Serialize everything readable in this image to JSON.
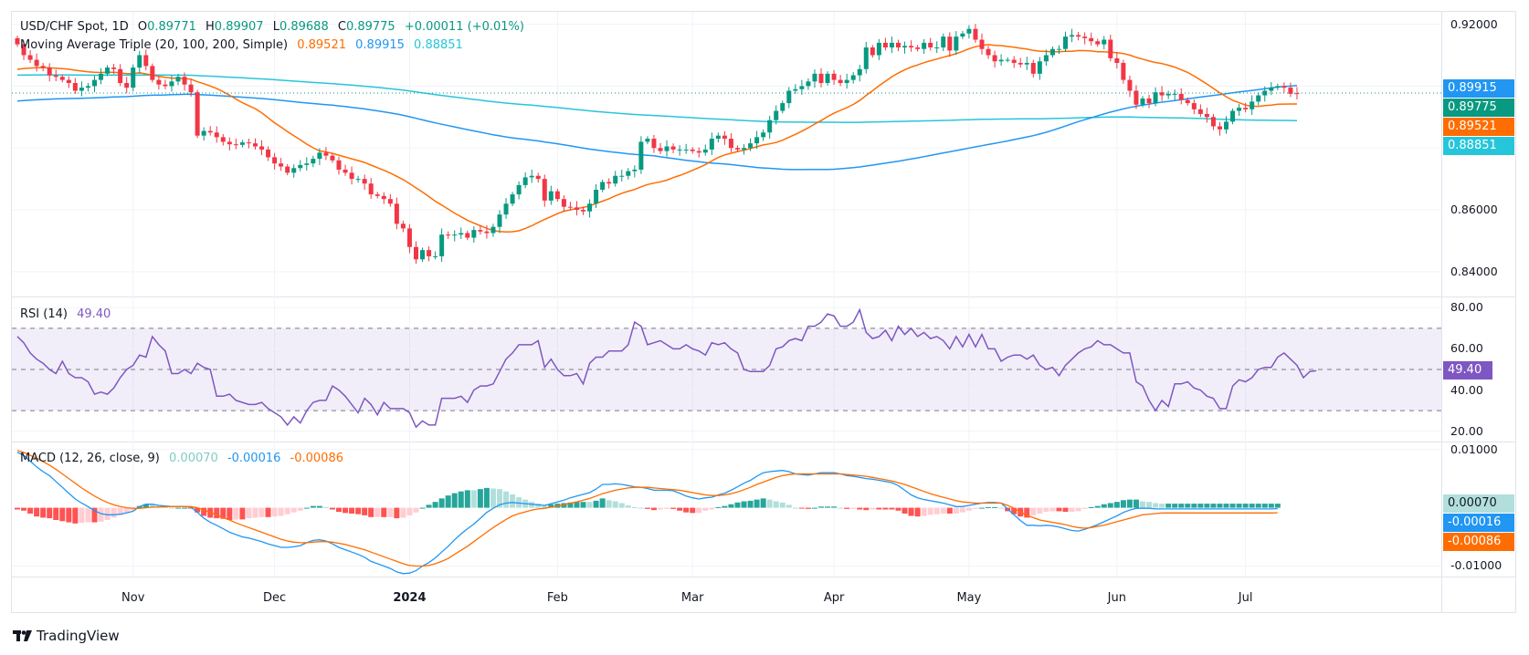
{
  "brand": {
    "name": "TradingView",
    "icon": "tradingview-logo-icon"
  },
  "header": {
    "symbol": "USD/CHF Spot, 1D",
    "ohlc": {
      "O": "0.89771",
      "H": "0.89907",
      "L": "0.89688",
      "C": "0.89775"
    },
    "change": "+0.00011 (+0.01%)",
    "ma_label": "Moving Average Triple (20, 100, 200, Simple)",
    "ma_values": [
      "0.89521",
      "0.89915",
      "0.88851"
    ]
  },
  "rsi": {
    "label": "RSI (14)",
    "value": "49.40"
  },
  "macd": {
    "label": "MACD (12, 26, close, 9)",
    "values": [
      "0.00070",
      "-0.00016",
      "-0.00086"
    ]
  },
  "colors": {
    "up": "#089981",
    "down": "#f23645",
    "ma20": "#ff6d00",
    "ma100": "#2196f3",
    "ma200": "#26c6da",
    "rsi": "#7e57c2",
    "hist_up_strong": "#26a69a",
    "hist_up_weak": "#b2dfdb",
    "hist_down_strong": "#ff5252",
    "hist_down_weak": "#ffcdd2"
  },
  "price_badges": [
    {
      "label": "0.89915",
      "color": "#2196f3"
    },
    {
      "label": "0.89775",
      "color": "#089981"
    },
    {
      "label": "0.89521",
      "color": "#ff6d00"
    },
    {
      "label": "0.88851",
      "color": "#26c6da"
    }
  ],
  "rsi_badge": {
    "label": "49.40",
    "color": "#7e57c2"
  },
  "macd_badges": [
    {
      "label": "0.00070",
      "color": "#b2dfdb",
      "text": "#131722"
    },
    {
      "label": "-0.00016",
      "color": "#2196f3",
      "text": "#ffffff"
    },
    {
      "label": "-0.00086",
      "color": "#ff6d00",
      "text": "#ffffff"
    }
  ],
  "chart_data": [
    {
      "type": "candlestick",
      "title": "USD/CHF Spot, 1D",
      "ylim": [
        0.832,
        0.924
      ],
      "yticks": [
        "0.92000",
        "0.90000",
        "0.88000",
        "0.86000",
        "0.84000"
      ],
      "ytick_values": [
        0.92,
        0.9,
        0.88,
        0.86,
        0.84
      ],
      "xticks": [
        "Nov",
        "Dec",
        "2024",
        "Feb",
        "Mar",
        "Apr",
        "May",
        "Jun",
        "Jul"
      ],
      "xtick_index": [
        18,
        40,
        61,
        84,
        105,
        127,
        148,
        171,
        191
      ],
      "last_close": 0.89775,
      "closes": [
        0.9135,
        0.91,
        0.9085,
        0.9065,
        0.906,
        0.9035,
        0.903,
        0.902,
        0.901,
        0.8985,
        0.8995,
        0.9,
        0.902,
        0.904,
        0.906,
        0.9055,
        0.901,
        0.8995,
        0.906,
        0.91,
        0.9065,
        0.902,
        0.9005,
        0.9,
        0.9015,
        0.903,
        0.9005,
        0.898,
        0.884,
        0.8855,
        0.885,
        0.8835,
        0.882,
        0.8812,
        0.881,
        0.8818,
        0.8815,
        0.8805,
        0.8795,
        0.877,
        0.875,
        0.874,
        0.872,
        0.8735,
        0.8745,
        0.875,
        0.8765,
        0.8785,
        0.8775,
        0.876,
        0.873,
        0.872,
        0.87,
        0.87,
        0.8685,
        0.865,
        0.8645,
        0.8635,
        0.862,
        0.8555,
        0.854,
        0.848,
        0.844,
        0.847,
        0.845,
        0.845,
        0.852,
        0.8518,
        0.852,
        0.8525,
        0.851,
        0.8535,
        0.853,
        0.8525,
        0.8545,
        0.8585,
        0.862,
        0.865,
        0.868,
        0.8705,
        0.871,
        0.87,
        0.863,
        0.866,
        0.8635,
        0.861,
        0.8608,
        0.86,
        0.8595,
        0.862,
        0.8665,
        0.869,
        0.8685,
        0.871,
        0.871,
        0.8725,
        0.873,
        0.882,
        0.883,
        0.88,
        0.879,
        0.8805,
        0.8795,
        0.8795,
        0.8795,
        0.879,
        0.8785,
        0.8795,
        0.883,
        0.884,
        0.883,
        0.88,
        0.8795,
        0.88,
        0.8815,
        0.8835,
        0.885,
        0.889,
        0.892,
        0.8945,
        0.8985,
        0.899,
        0.9,
        0.9015,
        0.904,
        0.901,
        0.904,
        0.902,
        0.901,
        0.902,
        0.9035,
        0.9055,
        0.9125,
        0.91,
        0.914,
        0.9125,
        0.914,
        0.9125,
        0.913,
        0.9125,
        0.912,
        0.914,
        0.9125,
        0.9125,
        0.916,
        0.9115,
        0.916,
        0.917,
        0.9185,
        0.915,
        0.912,
        0.91,
        0.908,
        0.9085,
        0.9085,
        0.9075,
        0.907,
        0.9075,
        0.904,
        0.908,
        0.91,
        0.912,
        0.912,
        0.916,
        0.9165,
        0.916,
        0.9155,
        0.9145,
        0.9135,
        0.915,
        0.909,
        0.9075,
        0.902,
        0.8985,
        0.894,
        0.896,
        0.8945,
        0.898,
        0.897,
        0.8975,
        0.8975,
        0.8955,
        0.8945,
        0.8925,
        0.891,
        0.89,
        0.887,
        0.886,
        0.8885,
        0.892,
        0.893,
        0.8925,
        0.895,
        0.897,
        0.8985,
        0.8995,
        0.9,
        0.8995,
        0.8975,
        0.8975
      ],
      "ma20_note": "orange",
      "ma100_note": "blue",
      "ma200_note": "cyan"
    },
    {
      "type": "line",
      "title": "RSI (14)",
      "ylim": [
        15,
        85
      ],
      "yticks": [
        "80.00",
        "60.00",
        "40.00",
        "20.00"
      ],
      "ytick_values": [
        80,
        60,
        40,
        20
      ],
      "bands": [
        70,
        50,
        30
      ],
      "values": [
        66,
        63,
        58,
        55,
        53,
        50,
        48,
        54,
        48,
        46,
        46,
        44,
        38,
        39,
        38,
        41,
        46,
        50,
        52,
        57,
        56,
        66,
        62,
        59,
        48,
        48,
        50,
        48,
        53,
        51,
        50,
        37,
        37,
        38,
        35,
        34,
        33,
        33,
        34,
        31,
        29,
        27,
        23,
        27,
        24,
        30,
        34,
        35,
        35,
        42,
        40,
        37,
        33,
        29,
        36,
        33,
        28,
        34,
        31,
        31,
        31,
        29,
        22,
        25,
        23,
        23,
        36,
        36,
        36,
        37,
        34,
        40,
        42,
        42,
        43,
        49,
        55,
        58,
        62,
        62,
        62,
        64,
        51,
        55,
        50,
        47,
        47,
        48,
        43,
        53,
        56,
        56,
        59,
        59,
        59,
        62,
        73,
        71,
        62,
        63,
        64,
        62,
        60,
        60,
        62,
        60,
        59,
        57,
        63,
        62,
        63,
        60,
        58,
        50,
        49,
        49,
        49,
        52,
        60,
        61,
        64,
        65,
        64,
        71,
        71,
        73,
        77,
        76,
        71,
        71,
        73,
        79,
        68,
        65,
        66,
        69,
        64,
        71,
        67,
        70,
        66,
        68,
        65,
        66,
        64,
        60,
        66,
        61,
        67,
        61,
        67,
        60,
        60,
        54,
        56,
        57,
        57,
        55,
        57,
        52,
        50,
        51,
        47,
        52,
        55,
        58,
        60,
        61,
        64,
        62,
        62,
        60,
        58,
        58,
        44,
        42,
        35,
        30,
        35,
        32,
        43,
        43,
        44,
        41,
        40,
        37,
        36,
        31,
        31,
        42,
        45,
        44,
        46,
        50,
        51,
        51,
        56,
        58,
        55,
        52,
        46,
        49,
        49.4
      ]
    },
    {
      "type": "bar+line",
      "title": "MACD (12, 26, close, 9)",
      "ylim": [
        -0.0118,
        0.0112
      ],
      "yticks": [
        "0.01000",
        "-0.01000"
      ],
      "ytick_values": [
        0.01,
        -0.01
      ],
      "macd": [
        0.0095,
        0.009,
        0.008,
        0.007,
        0.0062,
        0.0055,
        0.0045,
        0.0035,
        0.0025,
        0.0015,
        0.0008,
        0.0002,
        -0.0005,
        -0.001,
        -0.0012,
        -0.0012,
        -0.0011,
        -0.0009,
        -0.0006,
        0.0002,
        0.0006,
        0.0006,
        0.0004,
        0.0003,
        0.0002,
        0.0002,
        0.0002,
        0.0001,
        -0.0008,
        -0.0018,
        -0.0025,
        -0.003,
        -0.0036,
        -0.0042,
        -0.0046,
        -0.005,
        -0.0052,
        -0.0055,
        -0.0058,
        -0.0062,
        -0.0065,
        -0.0068,
        -0.0068,
        -0.0067,
        -0.0065,
        -0.006,
        -0.0056,
        -0.0055,
        -0.0057,
        -0.0062,
        -0.0068,
        -0.0072,
        -0.0076,
        -0.008,
        -0.0085,
        -0.0092,
        -0.0096,
        -0.01,
        -0.0104,
        -0.011,
        -0.0113,
        -0.0112,
        -0.0108,
        -0.01,
        -0.0094,
        -0.0086,
        -0.0076,
        -0.0066,
        -0.0055,
        -0.0045,
        -0.0036,
        -0.0028,
        -0.0018,
        -0.0008,
        -0.0001,
        0.0005,
        0.0008,
        0.0009,
        0.0008,
        0.0007,
        0.0006,
        0.0005,
        0.0004,
        0.0007,
        0.001,
        0.0013,
        0.0017,
        0.002,
        0.0023,
        0.0026,
        0.0032,
        0.004,
        0.004,
        0.0041,
        0.004,
        0.0038,
        0.0036,
        0.0035,
        0.0033,
        0.003,
        0.003,
        0.003,
        0.0029,
        0.0025,
        0.002,
        0.0017,
        0.0015,
        0.0017,
        0.0018,
        0.0022,
        0.0025,
        0.003,
        0.0036,
        0.0042,
        0.0047,
        0.0054,
        0.006,
        0.0062,
        0.0063,
        0.0064,
        0.0062,
        0.0058,
        0.0057,
        0.0056,
        0.0058,
        0.006,
        0.006,
        0.006,
        0.0058,
        0.0055,
        0.0054,
        0.0052,
        0.005,
        0.0049,
        0.0047,
        0.0045,
        0.0043,
        0.0038,
        0.003,
        0.0022,
        0.0017,
        0.0014,
        0.0012,
        0.001,
        0.0008,
        0.0005,
        0.0002,
        0.0002,
        0.0004,
        0.0006,
        0.0008,
        0.0009,
        0.0009,
        0.0008,
        -0.0002,
        -0.0012,
        -0.0022,
        -0.003,
        -0.003,
        -0.0031,
        -0.003,
        -0.0031,
        -0.0033,
        -0.0036,
        -0.0039,
        -0.004,
        -0.0037,
        -0.0033,
        -0.0029,
        -0.0024,
        -0.0019,
        -0.0014,
        -0.0008,
        -0.0004,
        -0.0001,
        -0.0001,
        -0.0001,
        -0.0002,
        -0.0002,
        -0.0002,
        -0.0002,
        -0.0002,
        -0.0002,
        -0.0002,
        -0.0002,
        -0.0002,
        -0.0002,
        -0.0002,
        -0.0002,
        -0.0002,
        -0.0002,
        -0.0002,
        -0.0002,
        -0.0002,
        -0.0002,
        -0.0002,
        -0.00016
      ],
      "signal": [
        0.0098,
        0.0095,
        0.009,
        0.0085,
        0.0079,
        0.0073,
        0.0066,
        0.0058,
        0.005,
        0.0042,
        0.0034,
        0.0027,
        0.002,
        0.0014,
        0.0009,
        0.0005,
        0.0002,
        0.0,
        -0.0001,
        -0.0001,
        0.0,
        0.0001,
        0.0001,
        0.0002,
        0.0002,
        0.0002,
        0.0002,
        0.0002,
        0.0,
        -0.0004,
        -0.0008,
        -0.0012,
        -0.0017,
        -0.0021,
        -0.0026,
        -0.003,
        -0.0034,
        -0.0038,
        -0.0042,
        -0.0046,
        -0.005,
        -0.0054,
        -0.0057,
        -0.0059,
        -0.006,
        -0.006,
        -0.0059,
        -0.0058,
        -0.0058,
        -0.0059,
        -0.0061,
        -0.0063,
        -0.0066,
        -0.0069,
        -0.0072,
        -0.0076,
        -0.008,
        -0.0084,
        -0.0088,
        -0.0092,
        -0.0096,
        -0.0099,
        -0.01,
        -0.01,
        -0.0099,
        -0.0096,
        -0.0092,
        -0.0087,
        -0.008,
        -0.0073,
        -0.0066,
        -0.0058,
        -0.005,
        -0.0042,
        -0.0034,
        -0.0027,
        -0.002,
        -0.0014,
        -0.001,
        -0.0007,
        -0.0004,
        -0.0002,
        -0.0001,
        0.0001,
        0.0003,
        0.0005,
        0.0008,
        0.001,
        0.0013,
        0.0016,
        0.002,
        0.0024,
        0.0027,
        0.003,
        0.0032,
        0.0034,
        0.0035,
        0.0035,
        0.0035,
        0.0034,
        0.0033,
        0.0032,
        0.0031,
        0.003,
        0.0028,
        0.0026,
        0.0024,
        0.0022,
        0.0021,
        0.0021,
        0.0022,
        0.0024,
        0.0027,
        0.0031,
        0.0035,
        0.004,
        0.0044,
        0.0048,
        0.0052,
        0.0055,
        0.0057,
        0.0058,
        0.0058,
        0.0058,
        0.0058,
        0.0058,
        0.0058,
        0.0058,
        0.0058,
        0.0057,
        0.0056,
        0.0055,
        0.0054,
        0.0052,
        0.005,
        0.0048,
        0.0046,
        0.0043,
        0.004,
        0.0036,
        0.0032,
        0.0028,
        0.0024,
        0.0021,
        0.0018,
        0.0015,
        0.0012,
        0.001,
        0.0009,
        0.0008,
        0.0008,
        0.0008,
        0.0008,
        0.0008,
        0.0004,
        -0.0001,
        -0.0007,
        -0.0013,
        -0.0017,
        -0.0021,
        -0.0023,
        -0.0025,
        -0.0027,
        -0.0029,
        -0.0032,
        -0.0034,
        -0.0035,
        -0.0034,
        -0.0032,
        -0.003,
        -0.0027,
        -0.0024,
        -0.0021,
        -0.0018,
        -0.0015,
        -0.0012,
        -0.0011,
        -0.001,
        -0.0009,
        -0.0009,
        -0.0009,
        -0.0009,
        -0.0009,
        -0.0009,
        -0.0009,
        -0.0009,
        -0.0009,
        -0.0009,
        -0.0009,
        -0.0009,
        -0.0009,
        -0.0009,
        -0.0009,
        -0.0009,
        -0.0009,
        -0.0009,
        -0.00086
      ]
    }
  ]
}
